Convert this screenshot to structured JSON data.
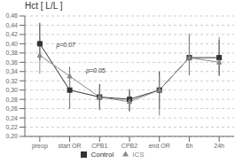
{
  "chart_data": {
    "type": "line",
    "title": "Hct [ L/L ]",
    "categories": [
      "preop",
      "start OR",
      "CPB1",
      "CPB2",
      "end OR",
      "6h",
      "24h"
    ],
    "series": [
      {
        "name": "Control",
        "color": "#333333",
        "marker": "square",
        "values": [
          0.4,
          0.3,
          0.285,
          0.28,
          0.3,
          0.37,
          0.37
        ],
        "yerr_low": [
          0.035,
          0.04,
          0.028,
          0.025,
          0.04,
          0.038,
          0.038
        ],
        "yerr_high": [
          0.045,
          0.05,
          0.028,
          0.022,
          0.04,
          0.048,
          0.038
        ]
      },
      {
        "name": "ICS",
        "color": "#888888",
        "marker": "triangle",
        "values": [
          0.375,
          0.33,
          0.285,
          0.275,
          0.3,
          0.37,
          0.36
        ],
        "yerr_low": [
          0.04,
          0.068,
          0.028,
          0.022,
          0.055,
          0.038,
          0.03
        ],
        "yerr_high": [
          0.038,
          0.018,
          0.022,
          0.022,
          0.03,
          0.052,
          0.055
        ]
      }
    ],
    "ylim": [
      0.2,
      0.46
    ],
    "yticks": [
      {
        "value": 0.2,
        "label": "0,20"
      },
      {
        "value": 0.22,
        "label": "0,22"
      },
      {
        "value": 0.24,
        "label": "0,24"
      },
      {
        "value": 0.26,
        "label": "0,26"
      },
      {
        "value": 0.28,
        "label": "0,28"
      },
      {
        "value": 0.3,
        "label": "0,30"
      },
      {
        "value": 0.32,
        "label": "0,32"
      },
      {
        "value": 0.34,
        "label": "0,34"
      },
      {
        "value": 0.36,
        "label": "0,36"
      },
      {
        "value": 0.38,
        "label": "0,38"
      },
      {
        "value": 0.4,
        "label": "0,40"
      },
      {
        "value": 0.42,
        "label": "0,42"
      },
      {
        "value": 0.44,
        "label": "0,44"
      },
      {
        "value": 0.46,
        "label": "0,46"
      }
    ],
    "grid": true,
    "legend": "bottom",
    "annotations": [
      {
        "text": "p=0.07",
        "x": 0.55,
        "y": 0.393
      },
      {
        "text": "p=0.05",
        "x": 1.55,
        "y": 0.337
      }
    ]
  }
}
